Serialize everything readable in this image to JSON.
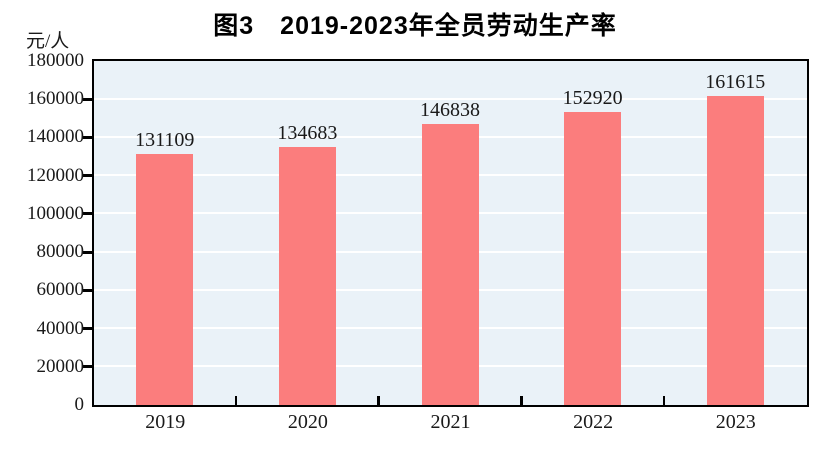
{
  "chart_data": {
    "type": "bar",
    "title": "图3　2019-2023年全员劳动生产率",
    "unit_label": "元/人",
    "categories": [
      "2019",
      "2020",
      "2021",
      "2022",
      "2023"
    ],
    "values": [
      131109,
      134683,
      146838,
      152920,
      161615
    ],
    "value_labels": [
      "131109",
      "134683",
      "146838",
      "152920",
      "161615"
    ],
    "xlabel": "",
    "ylabel": "元/人",
    "ylim": [
      0,
      180000
    ],
    "yticks": [
      0,
      20000,
      40000,
      60000,
      80000,
      100000,
      120000,
      140000,
      160000,
      180000
    ],
    "grid": "horizontal",
    "legend": "none",
    "colors": {
      "bar": "#FB7D7D",
      "plot_background": "#EAF2F8",
      "gridline": "#FFFFFF",
      "axis": "#000000",
      "text": "#1A1A1A"
    }
  }
}
